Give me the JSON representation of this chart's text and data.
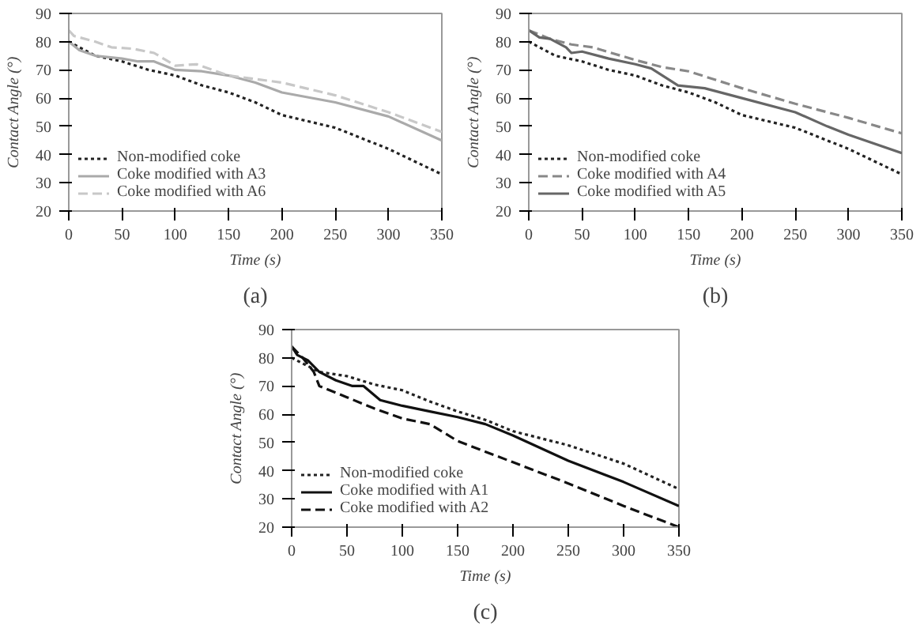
{
  "chart_data": [
    {
      "type": "line",
      "xlabel": "Time (s)",
      "ylabel": "Contact Angle (°)",
      "xlim": [
        0,
        350
      ],
      "ylim": [
        20,
        90
      ],
      "xticks": [
        0,
        50,
        100,
        150,
        200,
        250,
        300,
        350
      ],
      "yticks": [
        20,
        30,
        40,
        50,
        60,
        70,
        80,
        90
      ],
      "legend": "bottom left",
      "annotations": [
        "(a)"
      ],
      "series": [
        {
          "name": "Non-modified coke",
          "color": "#222222",
          "line_style": "dotted",
          "x": [
            0,
            10,
            25,
            50,
            75,
            100,
            125,
            150,
            175,
            200,
            250,
            300,
            350
          ],
          "values": [
            80,
            78,
            75,
            73,
            70,
            68,
            64.5,
            62,
            58.5,
            54,
            49.5,
            42,
            33
          ]
        },
        {
          "name": "Coke modified with A3",
          "color": "#aaaaaa",
          "line_style": "solid",
          "x": [
            0,
            10,
            25,
            50,
            65,
            80,
            100,
            125,
            150,
            175,
            200,
            250,
            300,
            350
          ],
          "values": [
            80,
            77,
            75,
            74,
            73,
            73,
            70,
            69.5,
            68,
            65.5,
            62,
            58.5,
            53.5,
            45
          ]
        },
        {
          "name": "Coke modified with A6",
          "color": "#c8c8c8",
          "line_style": "dashed",
          "x": [
            0,
            5,
            25,
            40,
            60,
            80,
            100,
            120,
            150,
            200,
            250,
            300,
            350
          ],
          "values": [
            84,
            82,
            80,
            78,
            77.5,
            76,
            71.5,
            72,
            68,
            65.5,
            61,
            55,
            48
          ]
        }
      ]
    },
    {
      "type": "line",
      "xlabel": "Time (s)",
      "ylabel": "Contact Angle (°)",
      "xlim": [
        0,
        350
      ],
      "ylim": [
        20,
        90
      ],
      "xticks": [
        0,
        50,
        100,
        150,
        200,
        250,
        300,
        350
      ],
      "yticks": [
        20,
        30,
        40,
        50,
        60,
        70,
        80,
        90
      ],
      "legend": "bottom left",
      "annotations": [
        "(b)"
      ],
      "series": [
        {
          "name": "Non-modified coke",
          "color": "#222222",
          "line_style": "dotted",
          "x": [
            0,
            10,
            25,
            50,
            75,
            100,
            125,
            150,
            175,
            200,
            250,
            300,
            350
          ],
          "values": [
            80,
            78,
            75,
            73,
            70,
            68,
            64.5,
            62,
            58.5,
            54,
            49.5,
            42,
            33
          ]
        },
        {
          "name": "Coke modified with A4",
          "color": "#888888",
          "line_style": "dashed",
          "x": [
            0,
            20,
            40,
            60,
            100,
            125,
            150,
            200,
            250,
            300,
            350
          ],
          "values": [
            84,
            81,
            79,
            78,
            73.5,
            71,
            69.5,
            63.5,
            58,
            53,
            47.5
          ]
        },
        {
          "name": "Coke modified with A5",
          "color": "#666666",
          "line_style": "solid",
          "x": [
            0,
            10,
            20,
            35,
            40,
            50,
            75,
            100,
            115,
            140,
            165,
            200,
            250,
            280,
            300,
            350
          ],
          "values": [
            84,
            81.5,
            81,
            78,
            76,
            76.5,
            74,
            72,
            70.5,
            64.5,
            63.5,
            60,
            55,
            50,
            47,
            40.5
          ]
        }
      ]
    },
    {
      "type": "line",
      "xlabel": "Time (s)",
      "ylabel": "Contact Angle (°)",
      "xlim": [
        0,
        350
      ],
      "ylim": [
        20,
        90
      ],
      "xticks": [
        0,
        50,
        100,
        150,
        200,
        250,
        300,
        350
      ],
      "yticks": [
        20,
        30,
        40,
        50,
        60,
        70,
        80,
        90
      ],
      "legend": "bottom left",
      "annotations": [
        "(c)"
      ],
      "series": [
        {
          "name": "Non-modified coke",
          "color": "#222222",
          "line_style": "dotted",
          "x": [
            0,
            10,
            25,
            50,
            75,
            100,
            125,
            150,
            175,
            200,
            250,
            300,
            350
          ],
          "values": [
            80,
            78,
            75,
            73.5,
            70.5,
            68.5,
            64.5,
            61,
            58,
            54,
            49,
            42.5,
            33.5
          ]
        },
        {
          "name": "Coke modified with A1",
          "color": "#111111",
          "line_style": "solid",
          "x": [
            0,
            5,
            15,
            25,
            40,
            55,
            65,
            80,
            100,
            125,
            150,
            175,
            200,
            250,
            300,
            350
          ],
          "values": [
            84,
            81,
            79,
            75,
            72,
            70,
            70,
            65,
            63,
            61,
            59,
            56.5,
            52.5,
            43.5,
            36,
            27.5
          ]
        },
        {
          "name": "Coke modified with A2",
          "color": "#111111",
          "line_style": "dashed",
          "x": [
            0,
            10,
            20,
            25,
            50,
            75,
            100,
            125,
            150,
            200,
            250,
            300,
            350
          ],
          "values": [
            84,
            80,
            75,
            70,
            66,
            62,
            58.5,
            56.5,
            50.5,
            43,
            35.5,
            27.5,
            20
          ]
        }
      ]
    }
  ]
}
